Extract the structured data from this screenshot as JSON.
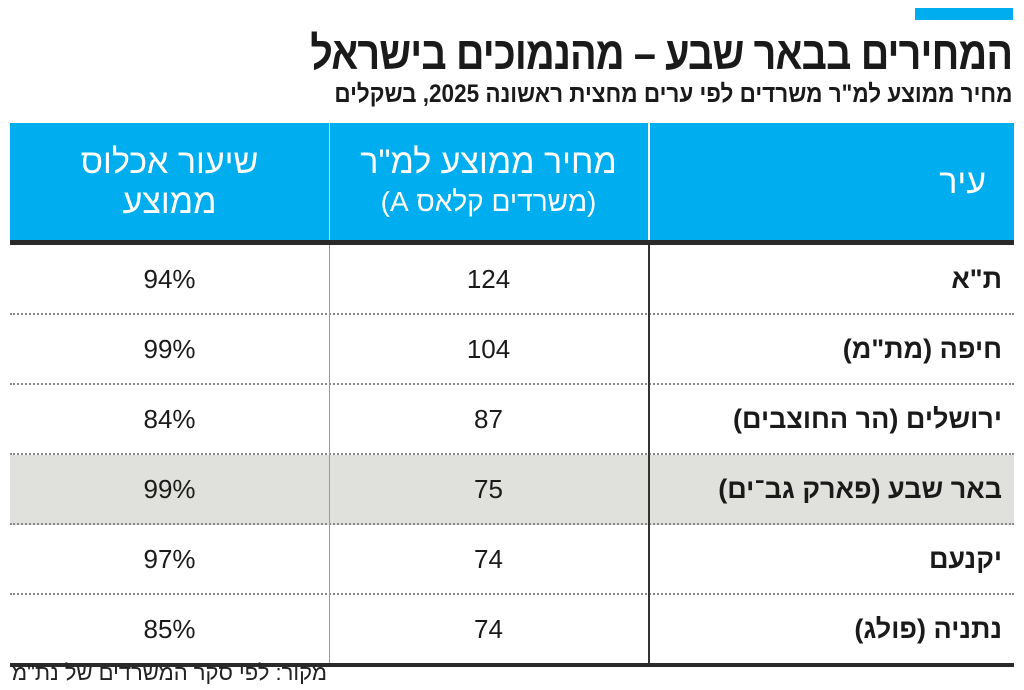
{
  "accent_color": "#00aeef",
  "highlight_color": "#e0e0dc",
  "title": "המחירים בבאר שבע – מהנמוכים בישראל",
  "subtitle": "מחיר ממוצע למ\"ר משרדים לפי ערים מחצית ראשונה 2025, בשקלים",
  "source": "מקור: לפי סקר המשרדים של נת\"מ",
  "chart_data": {
    "type": "table",
    "columns": [
      {
        "label": "עיר"
      },
      {
        "label": "מחיר ממוצע למ\"ר",
        "sublabel": "(משרדים קלאס A)"
      },
      {
        "label": "שיעור אכלוס",
        "sublabel": "ממוצע"
      }
    ],
    "rows": [
      {
        "city": "ת\"א",
        "price": "124",
        "occupancy": "94%",
        "highlight": false
      },
      {
        "city": "חיפה (מת\"מ)",
        "price": "104",
        "occupancy": "99%",
        "highlight": false
      },
      {
        "city": "ירושלים (הר החוצבים)",
        "price": "87",
        "occupancy": "84%",
        "highlight": false
      },
      {
        "city": "באר שבע (פארק גב־ים)",
        "price": "75",
        "occupancy": "99%",
        "highlight": true
      },
      {
        "city": "יקנעם",
        "price": "74",
        "occupancy": "97%",
        "highlight": false
      },
      {
        "city": "נתניה (פולג)",
        "price": "74",
        "occupancy": "85%",
        "highlight": false
      }
    ]
  }
}
